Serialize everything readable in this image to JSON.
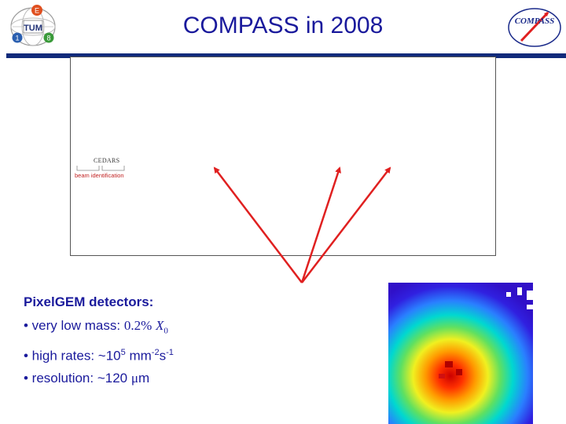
{
  "header": {
    "title": "COMPASS in 2008",
    "right_logo_text": "COMPASS"
  },
  "left_logo": {
    "letters": [
      "E",
      "TUM",
      "1",
      "8"
    ]
  },
  "diagram": {
    "cedars_label": "CEDARS",
    "beam_label": "beam identification"
  },
  "content": {
    "heading": "PixelGEM detectors:",
    "bullets": [
      {
        "prefix": "• very low mass: ",
        "value": "0.2%",
        "symbol": "X",
        "sub": "0"
      },
      {
        "prefix": "• high rates: ~10",
        "exp1": "5",
        "mid": " mm",
        "exp2": "-2",
        "s": "s",
        "exp3": "-1"
      },
      {
        "prefix": "• resolution: ~120 ",
        "mu": "μ",
        "unit": "m"
      }
    ]
  },
  "colors": {
    "title": "#1a1a9c",
    "rule": "#102a7a",
    "arrow": "#e02020"
  }
}
